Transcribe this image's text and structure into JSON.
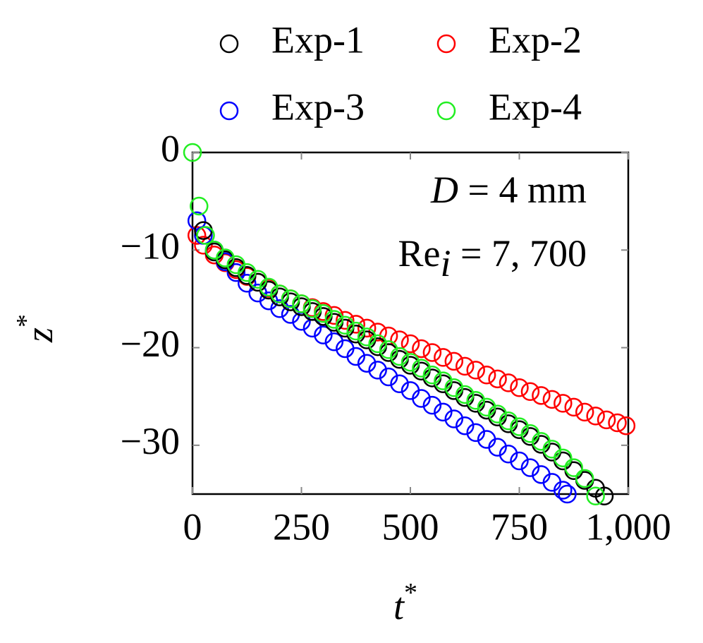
{
  "chart_data": {
    "type": "scatter",
    "xlabel": {
      "base": "t",
      "sup": "*"
    },
    "ylabel": {
      "base": "z",
      "sup": "*"
    },
    "annotations": [
      [
        "D",
        " = 4 mm"
      ],
      [
        "Re",
        "i",
        " = 7, 700"
      ]
    ],
    "xlim": [
      0,
      1000
    ],
    "ylim": [
      -35,
      0
    ],
    "xticks": [
      0,
      250,
      500,
      750,
      {
        "value": 1000,
        "label": "1,000"
      }
    ],
    "yticks": [
      0,
      {
        "value": -10,
        "label": "−10"
      },
      {
        "value": -20,
        "label": "−20"
      },
      {
        "value": -30,
        "label": "−30"
      }
    ],
    "series": [
      {
        "name": "Exp-2",
        "color": "#ff0000",
        "x": [
          10,
          25,
          50,
          75,
          100,
          125,
          150,
          175,
          200,
          225,
          250,
          275,
          300,
          325,
          350,
          375,
          400,
          425,
          450,
          475,
          500,
          525,
          550,
          575,
          600,
          625,
          650,
          675,
          700,
          725,
          750,
          775,
          800,
          825,
          850,
          875,
          900,
          925,
          950,
          975,
          995
        ],
        "values": [
          -8.5,
          -9.5,
          -10.5,
          -11.3,
          -12,
          -12.7,
          -13.3,
          -13.9,
          -14.5,
          -15,
          -15.5,
          -15.9,
          -16.3,
          -16.7,
          -17.2,
          -17.6,
          -18,
          -18.4,
          -18.8,
          -19.2,
          -19.6,
          -20.1,
          -20.5,
          -21,
          -21.4,
          -21.9,
          -22.3,
          -22.8,
          -23.2,
          -23.6,
          -24.1,
          -24.5,
          -24.9,
          -25.3,
          -25.7,
          -26.1,
          -26.6,
          -27,
          -27.4,
          -27.7,
          -28
        ]
      },
      {
        "name": "Exp-3",
        "color": "#0000ff",
        "x": [
          10,
          25,
          50,
          75,
          100,
          125,
          150,
          175,
          200,
          225,
          250,
          275,
          300,
          325,
          350,
          375,
          400,
          425,
          450,
          475,
          500,
          525,
          550,
          575,
          600,
          625,
          650,
          675,
          700,
          725,
          750,
          775,
          800,
          825,
          850,
          860
        ],
        "values": [
          -7,
          -8.5,
          -10,
          -11.2,
          -12.3,
          -13.4,
          -14.4,
          -15.2,
          -16,
          -16.6,
          -17.3,
          -18,
          -18.7,
          -19.4,
          -20.1,
          -20.9,
          -21.6,
          -22.3,
          -23,
          -23.7,
          -24.4,
          -25.2,
          -25.9,
          -26.6,
          -27.3,
          -28,
          -28.7,
          -29.4,
          -30.2,
          -30.9,
          -31.6,
          -32.3,
          -33,
          -33.8,
          -34.6,
          -35
        ]
      },
      {
        "name": "Exp-1",
        "color": "#000000",
        "x": [
          25,
          50,
          75,
          100,
          125,
          150,
          175,
          200,
          225,
          250,
          275,
          300,
          325,
          350,
          375,
          400,
          425,
          450,
          475,
          500,
          525,
          550,
          575,
          600,
          625,
          650,
          675,
          700,
          725,
          750,
          775,
          800,
          825,
          850,
          875,
          900,
          925,
          945
        ],
        "values": [
          -8,
          -10.2,
          -11,
          -11.8,
          -12.6,
          -13.3,
          -14.1,
          -14.8,
          -15.3,
          -15.8,
          -16.3,
          -16.8,
          -17.4,
          -18,
          -18.6,
          -19.2,
          -19.9,
          -20.5,
          -21.2,
          -21.8,
          -22.4,
          -23.1,
          -23.7,
          -24.4,
          -25.1,
          -25.7,
          -26.4,
          -27.1,
          -27.8,
          -28.4,
          -29.1,
          -29.9,
          -30.7,
          -31.6,
          -32.6,
          -33.6,
          -34.4,
          -35.2
        ]
      },
      {
        "name": "Exp-4",
        "color": "#22ee22",
        "x": [
          0,
          15,
          30,
          50,
          75,
          100,
          125,
          150,
          175,
          200,
          225,
          250,
          275,
          300,
          325,
          350,
          375,
          400,
          425,
          450,
          475,
          500,
          525,
          550,
          575,
          600,
          625,
          650,
          675,
          700,
          725,
          750,
          775,
          800,
          825,
          850,
          875,
          900,
          925
        ],
        "values": [
          0,
          -5.5,
          -8.5,
          -10,
          -10.8,
          -11.5,
          -12.3,
          -13,
          -13.8,
          -14.5,
          -15,
          -15.5,
          -16,
          -16.5,
          -17.1,
          -17.7,
          -18.3,
          -18.9,
          -19.6,
          -20.2,
          -20.9,
          -21.5,
          -22.1,
          -22.8,
          -23.4,
          -24.1,
          -24.8,
          -25.4,
          -26.1,
          -26.8,
          -27.5,
          -28.1,
          -28.8,
          -29.6,
          -30.4,
          -31.3,
          -32.3,
          -33.4,
          -35.2
        ]
      }
    ],
    "legend": "top"
  }
}
